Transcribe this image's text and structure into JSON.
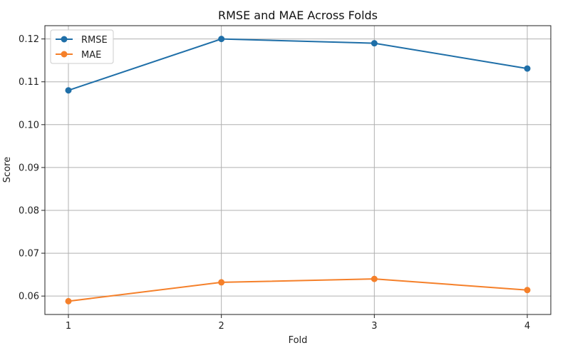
{
  "chart_data": {
    "type": "line",
    "title": "RMSE and MAE Across Folds",
    "xlabel": "Fold",
    "ylabel": "Score",
    "x": [
      1,
      2,
      3,
      4
    ],
    "ylim": [
      0.0557,
      0.1231
    ],
    "yticks": [
      "0.06",
      "0.07",
      "0.08",
      "0.09",
      "0.10",
      "0.11",
      "0.12"
    ],
    "xticks": [
      "1",
      "2",
      "3",
      "4"
    ],
    "grid": true,
    "legend_position": "top-left",
    "series": [
      {
        "name": "RMSE",
        "color": "#1f6fa8",
        "values": [
          0.108,
          0.12,
          0.119,
          0.1131
        ]
      },
      {
        "name": "MAE",
        "color": "#f5802a",
        "values": [
          0.0588,
          0.0632,
          0.064,
          0.0614
        ]
      }
    ]
  }
}
